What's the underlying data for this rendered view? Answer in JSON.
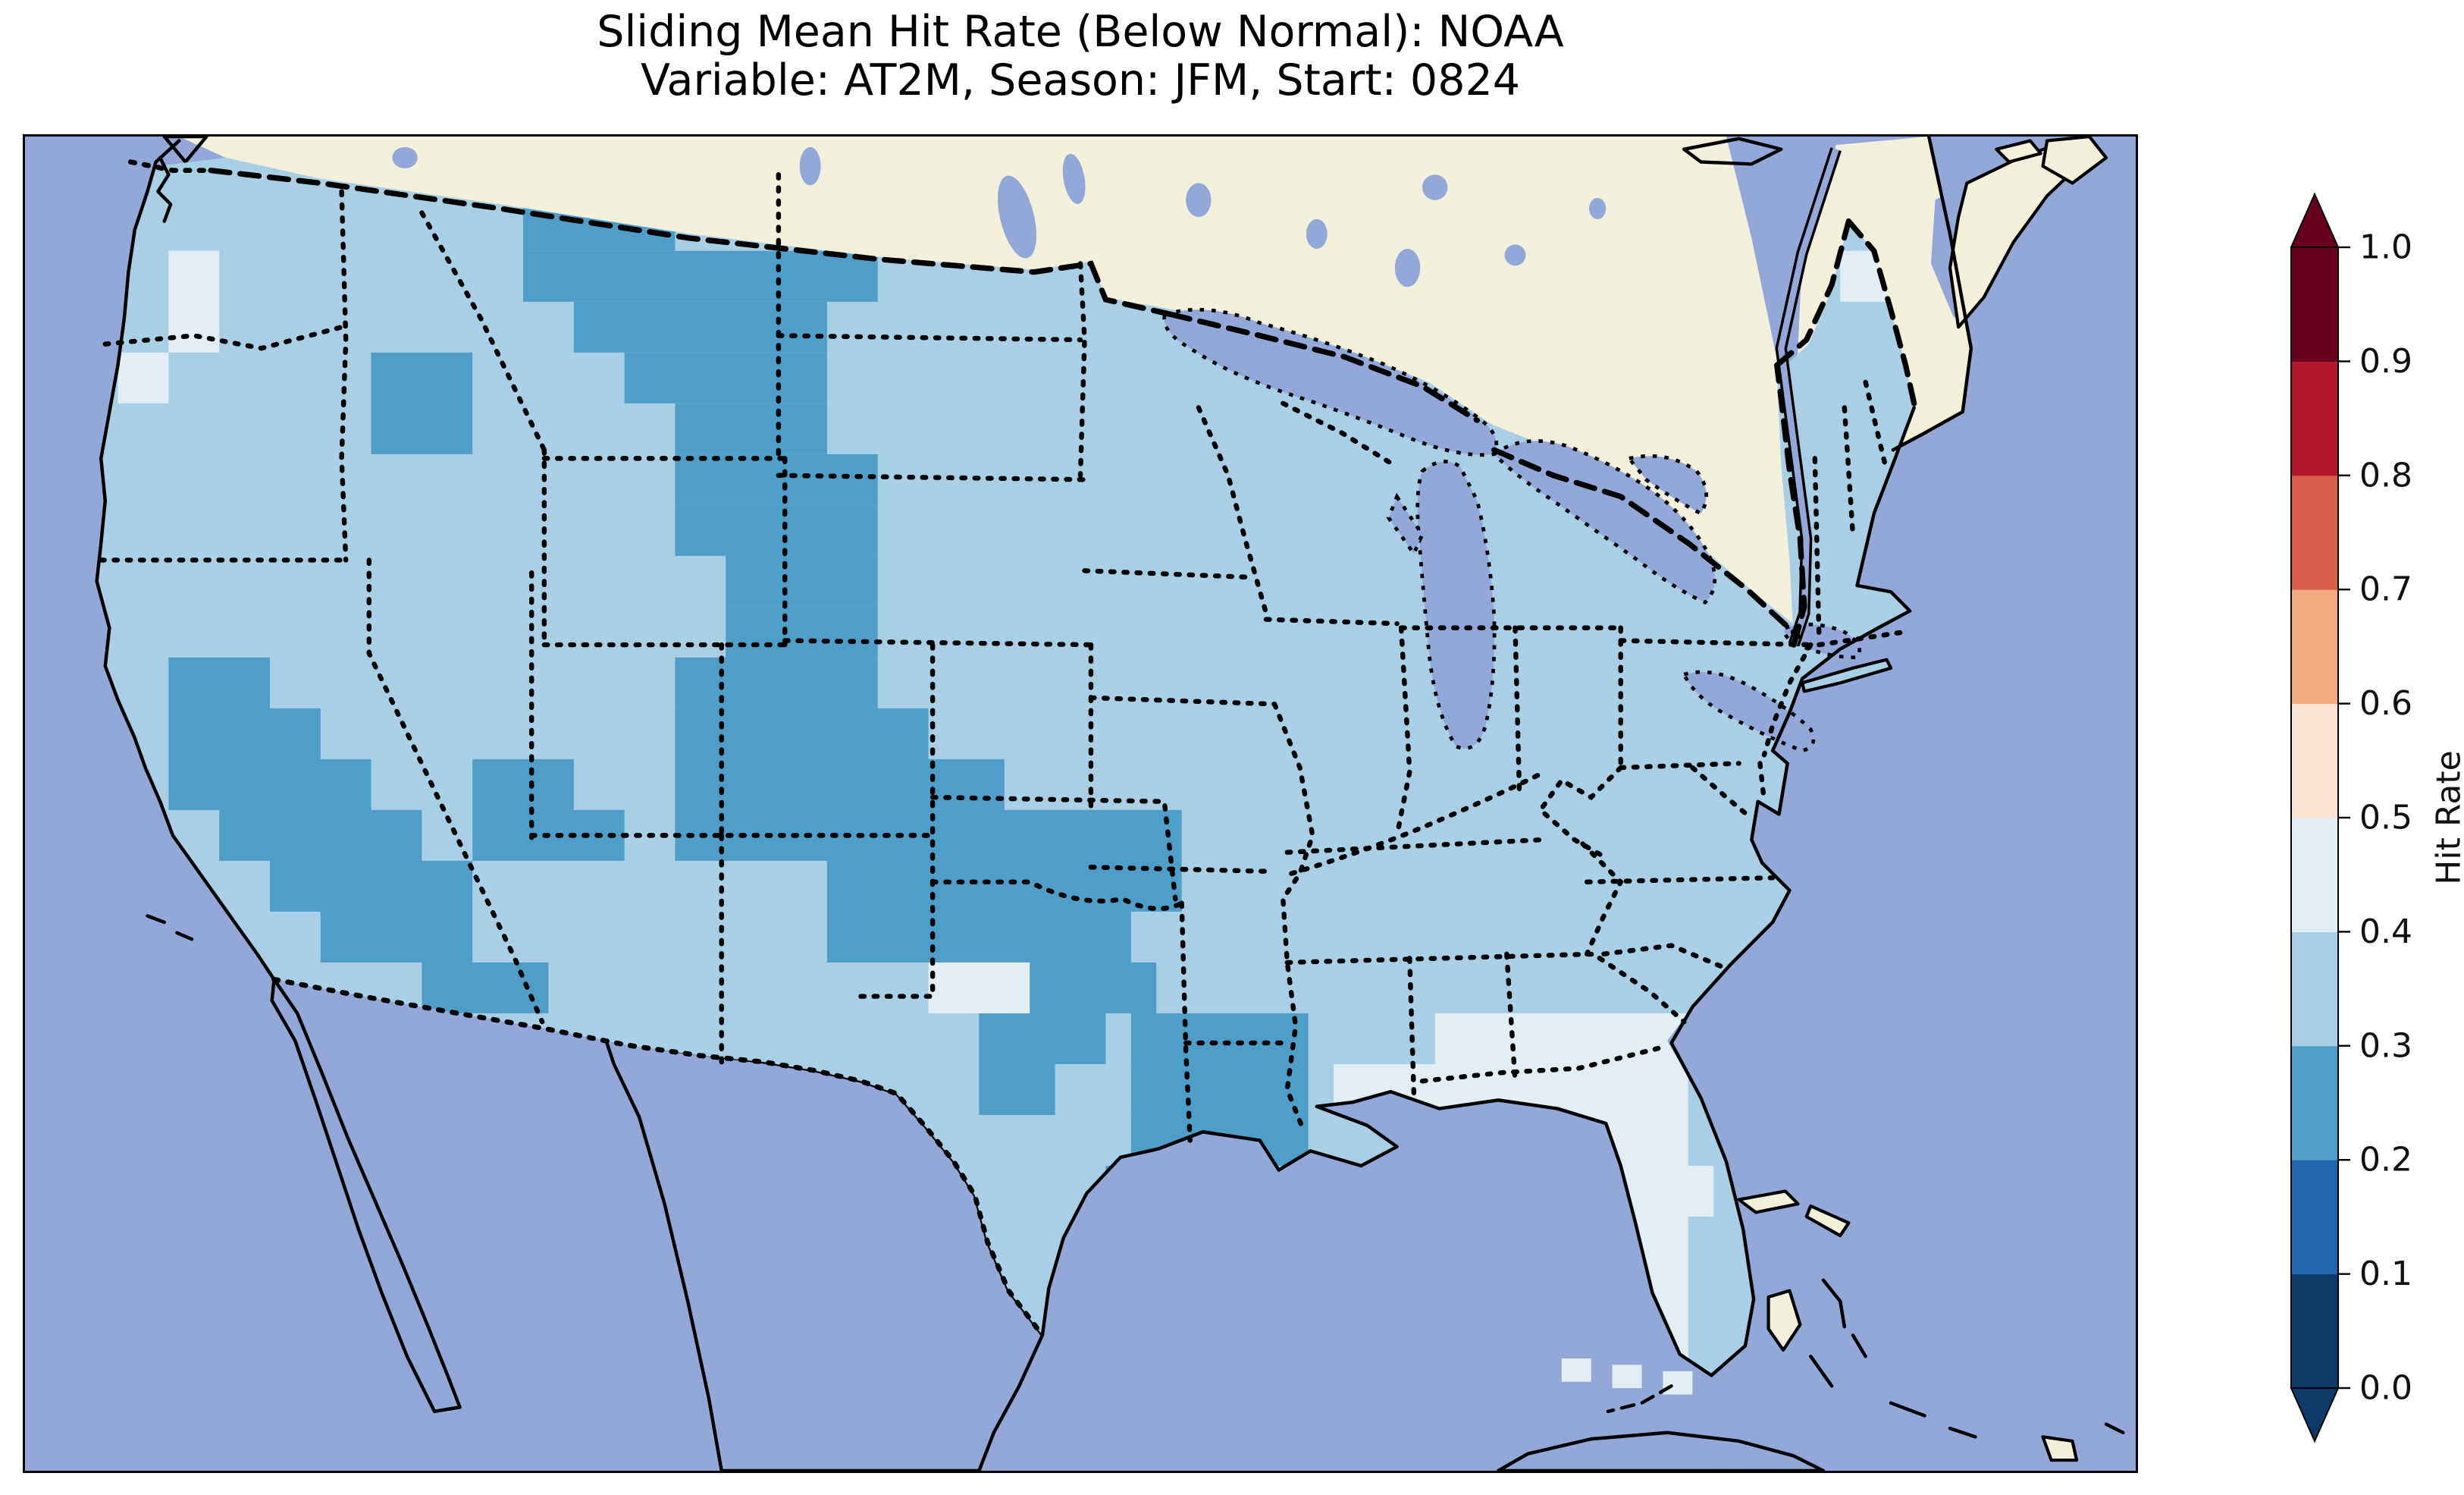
{
  "title": {
    "line1": "Sliding Mean Hit Rate (Below Normal): NOAA",
    "line2": "Variable: AT2M, Season: JFM, Start: 0824"
  },
  "colorbar": {
    "label": "Hit Rate",
    "ticks_top_to_bottom": [
      "1.0",
      "0.9",
      "0.8",
      "0.7",
      "0.6",
      "0.5",
      "0.4",
      "0.3",
      "0.2",
      "0.1",
      "0.0"
    ],
    "bin_colors_low_to_high": [
      "#0b3a68",
      "#2166ac",
      "#4f9dc9",
      "#a9cfe4",
      "#e3edf4",
      "#fbe3d3",
      "#f5a97e",
      "#d8604a",
      "#b2182b",
      "#67001f"
    ],
    "extend": "both",
    "extend_under_color": "#0b3a68",
    "extend_over_color": "#67001f"
  },
  "map": {
    "ocean_color": "#93a7d8",
    "lake_color": "#93a7d8",
    "land_color": "#f2efdb",
    "coast_color": "#000000",
    "us_base_color": "#a9cfe4",
    "dark_color": "#4f9dc9",
    "pale_color": "#e3edf4",
    "grid": {
      "dark_rects": [
        [
          236,
          30,
          72,
          24
        ],
        [
          236,
          54,
          168,
          24
        ],
        [
          260,
          78,
          120,
          24
        ],
        [
          284,
          102,
          96,
          24
        ],
        [
          164,
          102,
          48,
          48
        ],
        [
          308,
          126,
          72,
          24
        ],
        [
          308,
          150,
          96,
          24
        ],
        [
          308,
          174,
          96,
          24
        ],
        [
          332,
          198,
          72,
          24
        ],
        [
          332,
          222,
          72,
          24
        ],
        [
          308,
          246,
          96,
          24
        ],
        [
          308,
          270,
          120,
          24
        ],
        [
          308,
          294,
          120,
          24
        ],
        [
          308,
          318,
          72,
          24
        ],
        [
          68,
          246,
          48,
          24
        ],
        [
          68,
          270,
          72,
          24
        ],
        [
          68,
          294,
          96,
          24
        ],
        [
          92,
          318,
          96,
          24
        ],
        [
          116,
          342,
          96,
          24
        ],
        [
          140,
          366,
          72,
          24
        ],
        [
          212,
          294,
          48,
          24
        ],
        [
          212,
          318,
          72,
          24
        ],
        [
          188,
          390,
          60,
          24
        ],
        [
          380,
          294,
          84,
          24
        ],
        [
          380,
          318,
          168,
          24
        ],
        [
          380,
          342,
          168,
          24
        ],
        [
          380,
          366,
          144,
          24
        ],
        [
          476,
          390,
          60,
          24
        ],
        [
          452,
          414,
          60,
          24
        ],
        [
          452,
          438,
          36,
          24
        ],
        [
          524,
          414,
          84,
          24
        ],
        [
          524,
          438,
          84,
          24
        ],
        [
          524,
          462,
          84,
          24
        ],
        [
          512,
          486,
          60,
          24
        ]
      ],
      "pale_rects": [
        [
          68,
          54,
          24,
          48
        ],
        [
          44,
          102,
          24,
          24
        ],
        [
          884,
          30,
          24,
          24
        ],
        [
          860,
          54,
          24,
          24
        ],
        [
          428,
          390,
          48,
          24
        ],
        [
          668,
          414,
          120,
          24
        ],
        [
          620,
          438,
          168,
          24
        ],
        [
          692,
          462,
          96,
          24
        ],
        [
          716,
          486,
          84,
          24
        ],
        [
          620,
          486,
          24,
          24
        ],
        [
          716,
          510,
          72,
          24
        ],
        [
          740,
          534,
          48,
          24
        ],
        [
          740,
          558,
          48,
          24
        ]
      ],
      "keys_cells": [
        [
          728,
          577,
          14,
          11
        ],
        [
          752,
          580,
          14,
          11
        ],
        [
          776,
          583,
          14,
          11
        ]
      ]
    }
  },
  "chart_data": {
    "type": "heatmap",
    "title": "Sliding Mean Hit Rate (Below Normal): NOAA",
    "subtitle": "Variable: AT2M, Season: JFM, Start: 0824",
    "colorbar_label": "Hit Rate",
    "colorbar_ticks": [
      0.0,
      0.1,
      0.2,
      0.3,
      0.4,
      0.5,
      0.6,
      0.7,
      0.8,
      0.9,
      1.0
    ],
    "bin_edges": [
      0.0,
      0.1,
      0.2,
      0.3,
      0.4,
      0.5,
      0.6,
      0.7,
      0.8,
      0.9,
      1.0
    ],
    "bin_colors": [
      "#0b3a68",
      "#2166ac",
      "#4f9dc9",
      "#a9cfe4",
      "#e3edf4",
      "#fbe3d3",
      "#f5a97e",
      "#d8604a",
      "#b2182b",
      "#67001f"
    ],
    "legend_position": "right",
    "region_values": {
      "most_of_conus": "0.3-0.4",
      "montana_idaho_wyoming_patch": "0.2-0.3",
      "utah_west_colorado_patch": "0.2-0.3",
      "east_new_mexico_west_texas_oklahoma_kansas_patch": "0.2-0.3",
      "louisiana_south_arkansas_patch": "0.2-0.3",
      "central_south_california_south_nevada_patch": "0.2-0.3",
      "southeast_oregon_southwest_idaho_pocket": "0.2-0.3",
      "florida_and_gulf_southeast_coast": "0.4-0.5",
      "northeast_texas_pocket": "0.4-0.5",
      "washington_coast_cells": "0.4-0.5",
      "northern_maine_cells": "0.4-0.5"
    }
  }
}
